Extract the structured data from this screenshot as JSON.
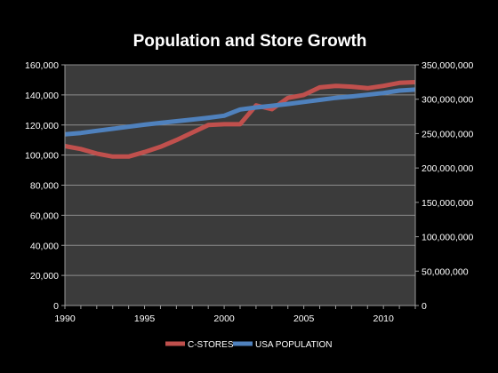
{
  "chart_data": {
    "type": "line",
    "title": "Population and Store Growth",
    "x": [
      1990,
      1991,
      1992,
      1993,
      1994,
      1995,
      1996,
      1997,
      1998,
      1999,
      2000,
      2001,
      2002,
      2003,
      2004,
      2005,
      2006,
      2007,
      2008,
      2009,
      2010,
      2011,
      2012
    ],
    "xlim": [
      1990,
      2012
    ],
    "x_ticks": [
      1990,
      1995,
      2000,
      2005,
      2010
    ],
    "x_tick_labels": [
      "1990",
      "1995",
      "2000",
      "2005",
      "2010"
    ],
    "y_left": {
      "ylim": [
        0,
        160000
      ],
      "ticks": [
        0,
        20000,
        40000,
        60000,
        80000,
        100000,
        120000,
        140000,
        160000
      ],
      "tick_labels": [
        "0",
        "20,000",
        "40,000",
        "60,000",
        "80,000",
        "100,000",
        "120,000",
        "140,000",
        "160,000"
      ]
    },
    "y_right": {
      "ylim": [
        0,
        350000000
      ],
      "ticks": [
        0,
        50000000,
        100000000,
        150000000,
        200000000,
        250000000,
        300000000,
        350000000
      ],
      "tick_labels": [
        "0",
        "50,000,000",
        "100,000,000",
        "150,000,000",
        "200,000,000",
        "250,000,000",
        "300,000,000",
        "350,000,000"
      ]
    },
    "grid": "horizontal",
    "legend_position": "bottom",
    "series": [
      {
        "name": "C-STORES",
        "axis": "left",
        "color": "#c0504d",
        "values": [
          106000,
          104000,
          101000,
          99000,
          99000,
          102000,
          105500,
          110000,
          115000,
          120000,
          120500,
          120500,
          133000,
          130500,
          138000,
          140000,
          145000,
          146000,
          145500,
          144500,
          146000,
          148000,
          148500
        ]
      },
      {
        "name": "USA POPULATION",
        "axis": "right",
        "color": "#4f81bd",
        "values": [
          249000000,
          251000000,
          254000000,
          257000000,
          260000000,
          263000000,
          265500000,
          268000000,
          270500000,
          273000000,
          276000000,
          285000000,
          288000000,
          290500000,
          293000000,
          296000000,
          299000000,
          302000000,
          304000000,
          306500000,
          309000000,
          312500000,
          314000000
        ]
      }
    ]
  },
  "colors": {
    "background": "#000000",
    "plot_area": "#3b3b3b",
    "gridline": "#8c8c8c",
    "text": "#ffffff"
  }
}
